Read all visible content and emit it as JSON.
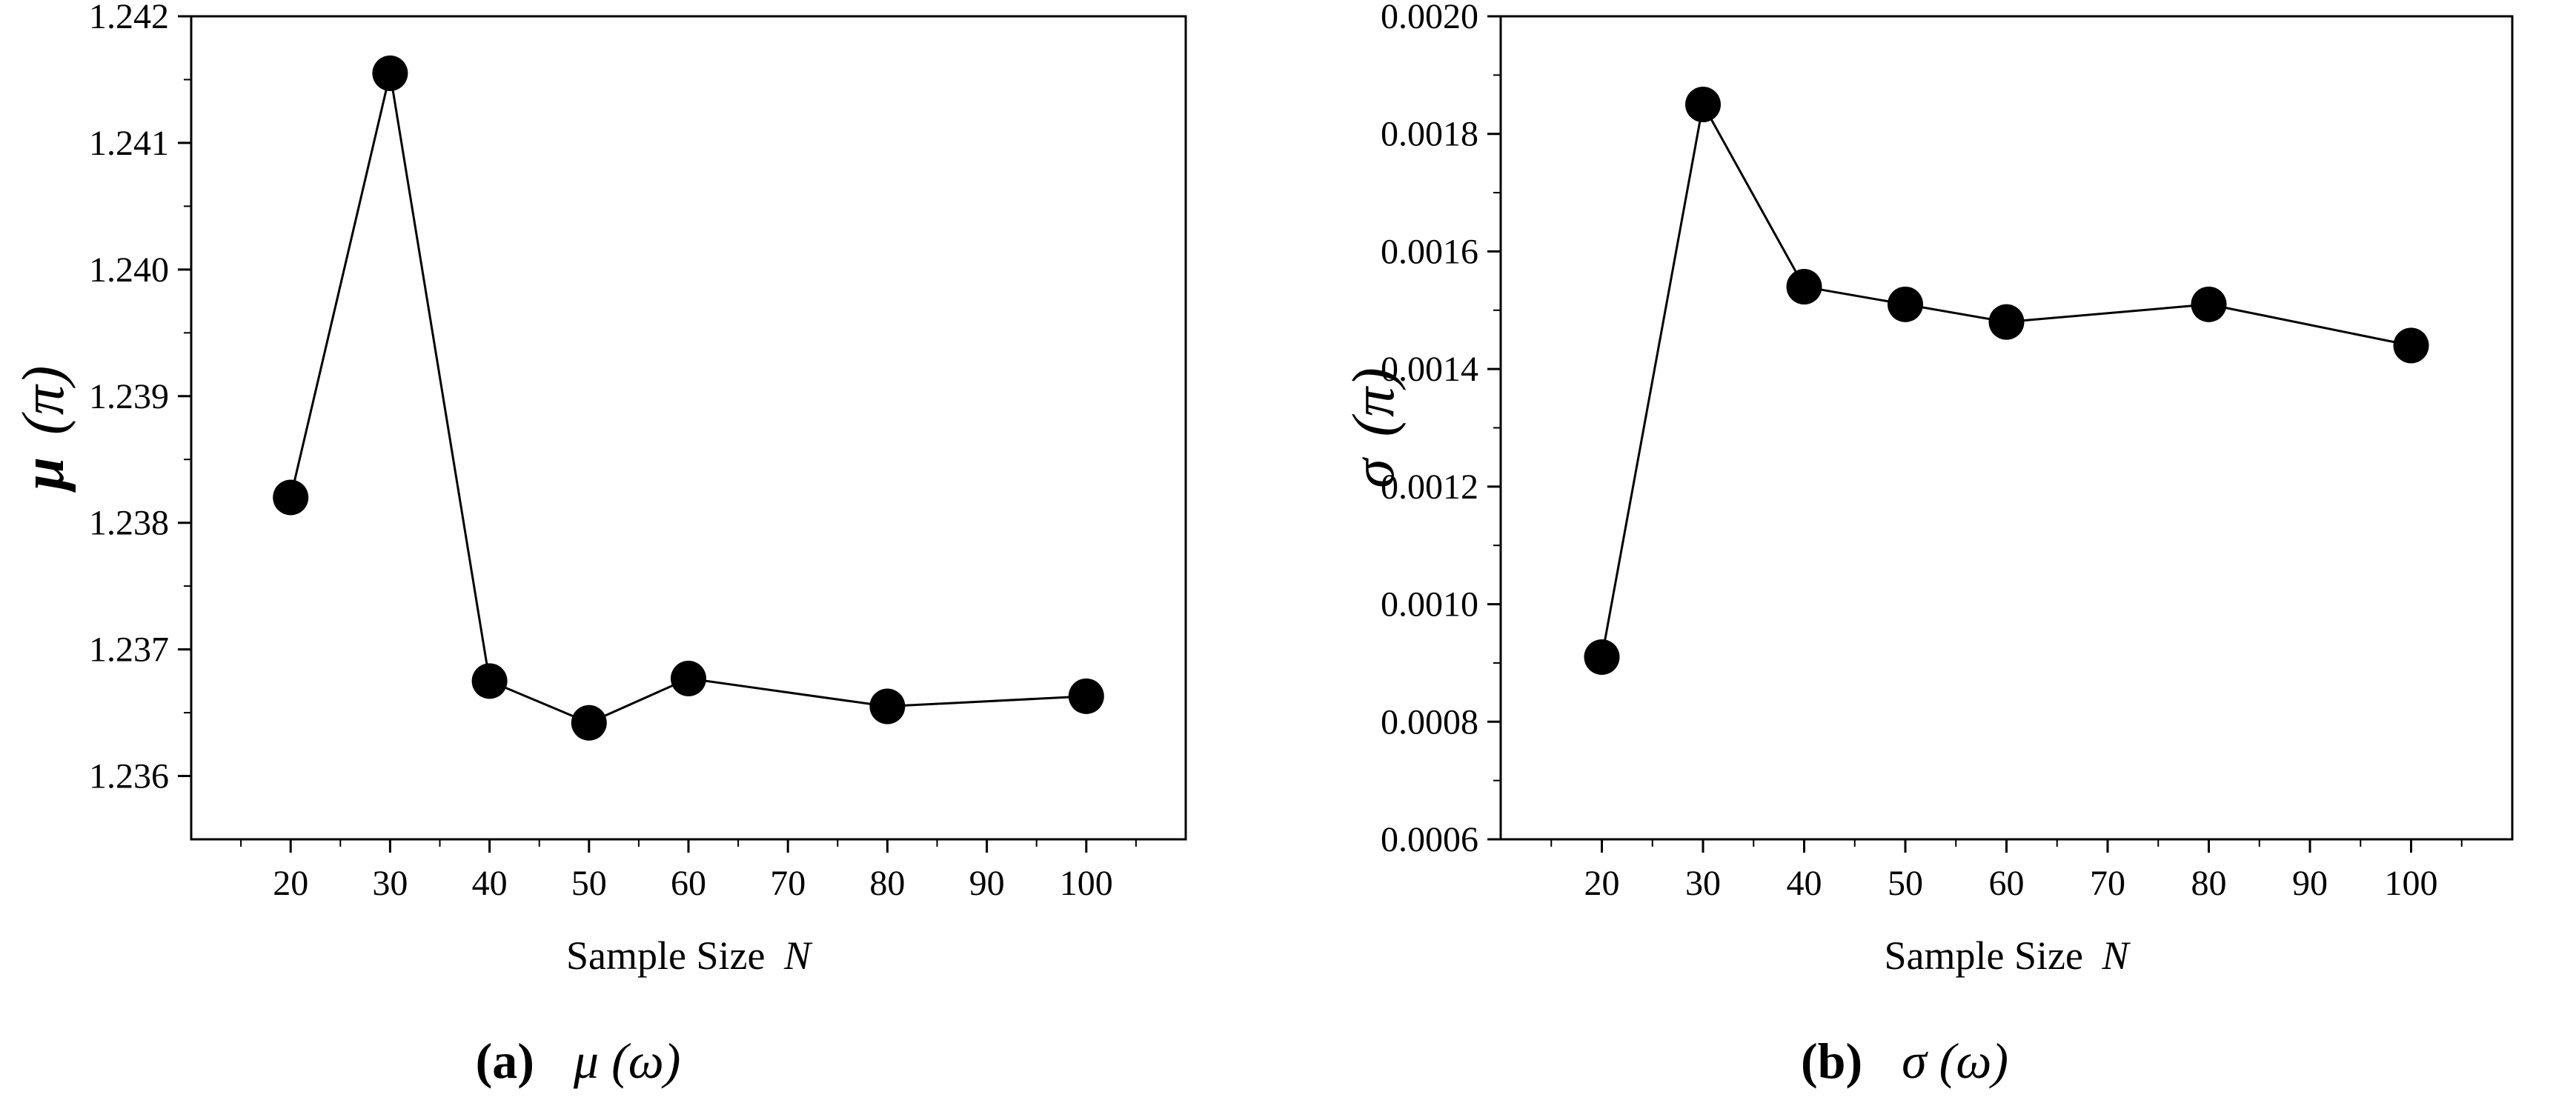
{
  "chart_data": [
    {
      "type": "line",
      "x": [
        20,
        30,
        40,
        50,
        60,
        80,
        100
      ],
      "values": [
        1.2382,
        1.24155,
        1.23675,
        1.23642,
        1.23677,
        1.23655,
        1.23663
      ],
      "xlabel": "Sample Size",
      "xlabel_var": "N",
      "ylabel": "μ",
      "ylabel_paren": "(π)",
      "xlim": [
        10,
        110
      ],
      "ylim": [
        1.2355,
        1.242
      ],
      "xticks": [
        20,
        30,
        40,
        50,
        60,
        70,
        80,
        90,
        100
      ],
      "yticks": [
        1.236,
        1.237,
        1.238,
        1.239,
        1.24,
        1.241,
        1.242
      ],
      "ytick_labels": [
        "1.236",
        "1.237",
        "1.238",
        "1.239",
        "1.240",
        "1.241",
        "1.242"
      ],
      "caption_label": "(a)",
      "caption_symbol": "μ",
      "caption_arg": "(ω)"
    },
    {
      "type": "line",
      "x": [
        20,
        30,
        40,
        50,
        60,
        80,
        100
      ],
      "values": [
        0.00091,
        0.00185,
        0.00154,
        0.00151,
        0.00148,
        0.00151,
        0.00144
      ],
      "xlabel": "Sample Size",
      "xlabel_var": "N",
      "ylabel": "σ",
      "ylabel_paren": "(π)",
      "xlim": [
        10,
        110
      ],
      "ylim": [
        0.0006,
        0.002
      ],
      "xticks": [
        20,
        30,
        40,
        50,
        60,
        70,
        80,
        90,
        100
      ],
      "yticks": [
        0.0006,
        0.0008,
        0.001,
        0.0012,
        0.0014,
        0.0016,
        0.0018,
        0.002
      ],
      "ytick_labels": [
        "0.0006",
        "0.0008",
        "0.0010",
        "0.0012",
        "0.0014",
        "0.0016",
        "0.0018",
        "0.0020"
      ],
      "caption_label": "(b)",
      "caption_symbol": "σ",
      "caption_arg": "(ω)"
    }
  ]
}
